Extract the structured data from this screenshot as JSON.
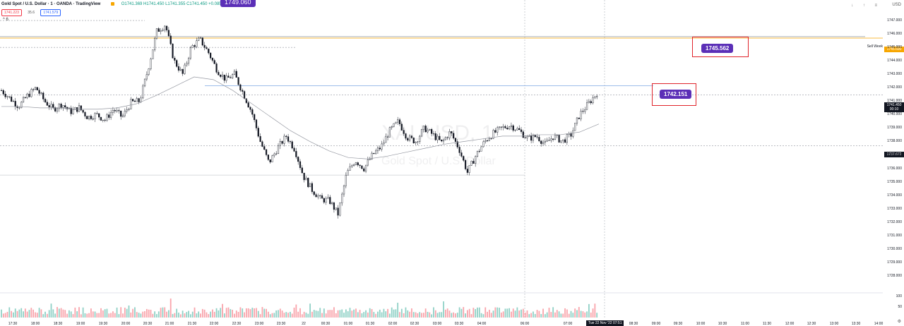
{
  "header": {
    "symbol": "Gold Spot / U.S. Dollar · 1 · OANDA · TradingView",
    "ohlc": "O1741.369 H1741.450 L1741.355 C1741.450 +0.085 (+0.00%)",
    "bid": "1741.223",
    "spread": "35.6",
    "ask": "1741.579",
    "arrow": "^ 6"
  },
  "top_tag": "1749.060",
  "currency": "USD",
  "toolbar": "↓ ↑ ≡",
  "watermark": {
    "ticker": "XAUUSD, 1",
    "desc": "Gold Spot / U.S. Dollar"
  },
  "annotations": {
    "badge_upper": "1745.562",
    "badge_lower": "1742.151",
    "sell_week": "Sell Week"
  },
  "price_tags": {
    "orange": "1745.690",
    "current": "1741.450",
    "countdown": "00:10",
    "right_mid": "1737.672"
  },
  "colors": {
    "badge": "#5b2fb7",
    "redbox": "#e0242b",
    "orange_line": "#f7a600",
    "blue_line": "#90b4e6",
    "candle": "#131722"
  },
  "chart_data": {
    "type": "candlestick",
    "ylim": [
      1727,
      1748
    ],
    "y_ticks": [
      1747,
      1746,
      1745,
      1744,
      1743,
      1742,
      1741,
      1740,
      1739,
      1738,
      1737,
      1736,
      1735,
      1734,
      1733,
      1732,
      1731,
      1730,
      1729,
      1728
    ],
    "x_ticks": [
      "17:30",
      "18:00",
      "18:30",
      "19:00",
      "19:30",
      "20:00",
      "20:30",
      "21:00",
      "21:30",
      "22:00",
      "22:30",
      "23:00",
      "23:30",
      "22",
      "00:30",
      "01:00",
      "01:30",
      "02:00",
      "02:30",
      "03:00",
      "03:30",
      "04:00",
      "06:00",
      "07:00",
      "Tue 22 Nov '22",
      "07:51",
      "08:30",
      "09:00",
      "09:30",
      "10:00",
      "10:30",
      "11:00",
      "11:30",
      "12:00",
      "12:30",
      "13:00",
      "13:30",
      "14:00"
    ],
    "price_path": [
      1741.8,
      1741.2,
      1740.6,
      1741.4,
      1742.0,
      1741.0,
      1740.4,
      1740.8,
      1740.2,
      1740.5,
      1739.8,
      1740.0,
      1739.6,
      1740.4,
      1739.8,
      1740.9,
      1741.0,
      1743.4,
      1746.2,
      1746.7,
      1744.0,
      1743.0,
      1745.0,
      1745.6,
      1744.6,
      1743.3,
      1742.6,
      1743.0,
      1741.6,
      1740.2,
      1738.0,
      1736.4,
      1737.5,
      1738.4,
      1737.4,
      1735.4,
      1734.4,
      1733.7,
      1733.6,
      1732.6,
      1735.6,
      1736.6,
      1736.0,
      1737.0,
      1737.6,
      1738.8,
      1739.5,
      1738.3,
      1738.0,
      1739.0,
      1738.5,
      1737.9,
      1738.7,
      1737.5,
      1735.7,
      1737.0,
      1738.0,
      1738.6,
      1739.0,
      1739.2,
      1738.8,
      1738.2,
      1738.4,
      1737.8,
      1738.4,
      1738.0,
      1738.5,
      1740.0,
      1740.8,
      1741.6
    ],
    "sma_path": [
      1740.6,
      1740.6,
      1740.5,
      1740.5,
      1740.4,
      1740.4,
      1740.5,
      1740.8,
      1741.4,
      1742.1,
      1742.8,
      1742.6,
      1741.8,
      1740.8,
      1739.8,
      1738.8,
      1738.0,
      1737.3,
      1736.8,
      1736.7,
      1736.9,
      1737.2,
      1737.5,
      1737.8,
      1738.0,
      1738.2,
      1738.4,
      1738.4,
      1738.5,
      1738.5,
      1738.7,
      1739.3
    ],
    "volume_scale": [
      0,
      100
    ],
    "volume_ticks": [
      100,
      50
    ],
    "levels": {
      "orange": 1745.69,
      "upper_gray": 1745.8,
      "blue": 1742.15,
      "dotted_top": 1747.0,
      "dotted_mid": 1745.0,
      "dotted_current": 1741.45,
      "dotted_right": 1737.67,
      "low_line": 1735.5
    }
  }
}
